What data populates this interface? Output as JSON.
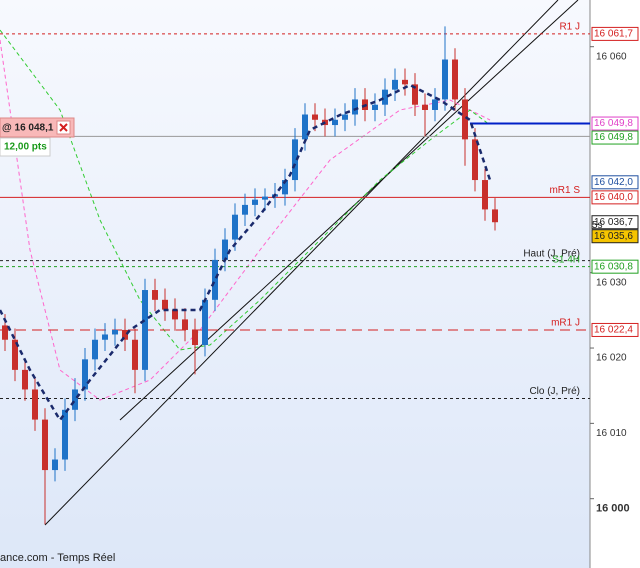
{
  "chart_data": {
    "type": "candlestick",
    "ylim": [
      15990.8,
      16066.2
    ],
    "yticks": [
      {
        "value": 16000,
        "label": "16 000"
      },
      {
        "value": 16010,
        "label": "16 010"
      },
      {
        "value": 16020,
        "label": "16 020"
      },
      {
        "value": 16030,
        "label": "16 030"
      },
      {
        "value": 16060,
        "label": "16 060"
      }
    ],
    "up_color": "#1f73c8",
    "down_color": "#c8302c",
    "open": [
      16023.0,
      16021.1,
      16017.1,
      16014.5,
      16010.5,
      16003.8,
      16005.2,
      16011.8,
      16014.5,
      16018.5,
      16021.1,
      16021.8,
      16022.4,
      16021.1,
      16017.1,
      16027.7,
      16026.4,
      16025.1,
      16023.8,
      16022.4,
      16020.4,
      16026.4,
      16031.7,
      16034.4,
      16037.7,
      16039.0,
      16039.7,
      16040.1,
      16040.4,
      16042.3,
      16047.7,
      16051.0,
      16050.3,
      16049.6,
      16050.3,
      16051.0,
      16053.0,
      16051.6,
      16052.3,
      16054.3,
      16055.6,
      16055.0,
      16052.3,
      16051.6,
      16053.0,
      16058.3,
      16053.0,
      16047.7,
      16042.3,
      16038.4
    ],
    "high": [
      16024.5,
      16022.6,
      16018.6,
      16016.0,
      16012.0,
      16006.7,
      16013.3,
      16016.0,
      16020.0,
      16022.6,
      16023.3,
      16023.9,
      16023.9,
      16022.6,
      16029.2,
      16029.2,
      16027.9,
      16026.6,
      16025.3,
      16023.9,
      16027.9,
      16033.2,
      16035.9,
      16039.2,
      16040.5,
      16041.2,
      16041.2,
      16041.9,
      16043.8,
      16049.2,
      16052.5,
      16052.5,
      16051.8,
      16051.8,
      16052.5,
      16054.5,
      16054.5,
      16053.8,
      16055.8,
      16057.1,
      16057.1,
      16056.5,
      16053.8,
      16054.5,
      16062.7,
      16059.8,
      16054.5,
      16049.2,
      16043.8,
      16039.9
    ],
    "low": [
      16019.6,
      16015.6,
      16013.0,
      16009.0,
      15996.6,
      16002.3,
      16003.7,
      16010.3,
      16013.0,
      16017.0,
      16019.6,
      16020.3,
      16019.6,
      16014.0,
      16015.6,
      16024.9,
      16023.6,
      16022.3,
      16020.9,
      16016.5,
      16018.9,
      16024.9,
      16030.2,
      16032.9,
      16036.2,
      16037.5,
      16038.2,
      16038.6,
      16038.9,
      16040.8,
      16046.2,
      16048.8,
      16048.1,
      16048.1,
      16048.8,
      16049.5,
      16050.1,
      16050.1,
      16050.8,
      16052.8,
      16053.5,
      16050.8,
      16048.1,
      16050.1,
      16051.5,
      16051.5,
      16044.2,
      16040.8,
      16036.9,
      16035.6
    ],
    "close": [
      16021.1,
      16017.1,
      16014.5,
      16010.5,
      16003.8,
      16005.2,
      16011.8,
      16014.5,
      16018.5,
      16021.1,
      16021.8,
      16022.4,
      16021.1,
      16017.1,
      16027.7,
      16026.4,
      16025.1,
      16023.8,
      16022.4,
      16020.4,
      16026.4,
      16031.7,
      16034.4,
      16037.7,
      16039.0,
      16039.7,
      16040.1,
      16040.4,
      16042.3,
      16047.7,
      16051.0,
      16050.3,
      16049.6,
      16050.3,
      16051.0,
      16053.0,
      16051.6,
      16052.3,
      16054.3,
      16055.6,
      16055.0,
      16052.3,
      16051.6,
      16053.0,
      16058.3,
      16053.0,
      16047.7,
      16042.3,
      16038.4,
      16036.7
    ],
    "levels": [
      {
        "label": "R1 J",
        "value": 16061.7,
        "value_label": "16 061,7",
        "color": "#d42020",
        "dash": "3,3"
      },
      {
        "value": 16049.8,
        "value_label": "16 049,8",
        "color": "#e040c8"
      },
      {
        "value": 16049.8,
        "value_label": "16 049,8",
        "color": "#20a020",
        "line_color": "#0020c8",
        "dash": "none",
        "line_from": 470
      },
      {
        "value": 16042.0,
        "value_label": "16 042,0",
        "color": "#2050a0"
      },
      {
        "label": "mR1 S",
        "value": 16040.0,
        "value_label": "16 040,0",
        "color": "#d42020",
        "dash": "none"
      },
      {
        "value": 16036.7,
        "value_label": "16 036,7",
        "color": "#222222"
      },
      {
        "value": 16035.6,
        "value_label": "16 035,6",
        "color": "#222222",
        "timer": "5s"
      },
      {
        "label": "Haut (J, Pré)",
        "value": 16031.6,
        "color": "#222222",
        "dash": "3,3"
      },
      {
        "label": "S1 4H",
        "value": 16030.8,
        "value_label": "16 030,8",
        "color": "#20a020",
        "dash": "3,3"
      },
      {
        "label": "mR1 J",
        "value": 16022.4,
        "value_label": "16 022,4",
        "color": "#d42020",
        "dash": "10,6"
      },
      {
        "label": "Clo (J, Pré)",
        "value": 16013.3,
        "color": "#222222",
        "dash": "3,3"
      }
    ],
    "order": {
      "price": 16048.1,
      "price_label": "@ 16 048,1",
      "pnl": "12,00 pts"
    },
    "footer": "ance.com - Temps Réel"
  }
}
